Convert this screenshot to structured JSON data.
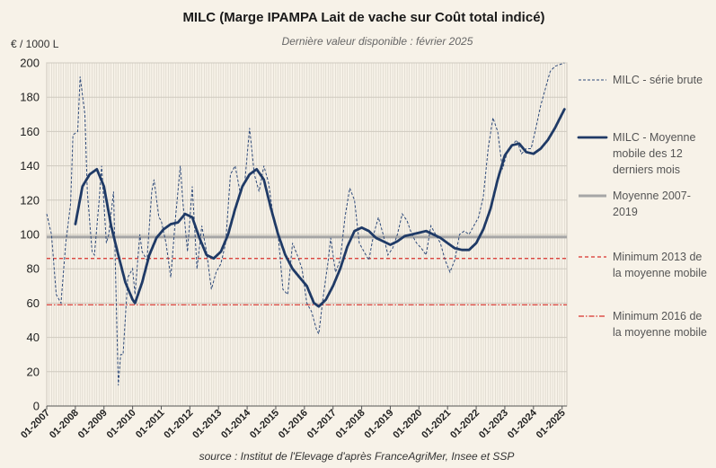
{
  "chart_data": {
    "type": "line",
    "title": "MILC (Marge IPAMPA Lait de vache sur Coût total indicé)",
    "subtitle": "Dernière valeur disponible : février 2025",
    "ylabel": "€ / 1000 L",
    "source": "source : Institut de l'Elevage d'après FranceAgriMer, Insee et SSP",
    "ylim": [
      0,
      200
    ],
    "yticks": [
      "0",
      "20",
      "40",
      "60",
      "80",
      "100",
      "120",
      "140",
      "160",
      "180",
      "200"
    ],
    "xticks": [
      "01-2007",
      "01-2008",
      "01-2009",
      "01-2010",
      "01-2011",
      "01-2012",
      "01-2013",
      "01-2014",
      "01-2015",
      "01-2016",
      "01-2017",
      "01-2018",
      "01-2019",
      "01-2020",
      "01-2021",
      "01-2022",
      "01-2023",
      "01-2024",
      "01-2025"
    ],
    "grid": true,
    "legend_position": "right",
    "colors": {
      "raw": "#2e4a7a",
      "moving_avg": "#1f3a66",
      "mean": "#a6a6a6",
      "min2013": "#d9312b",
      "min2016": "#d9312b"
    },
    "series": [
      {
        "name": "MILC - série brute",
        "style": "dashed-thin",
        "points": [
          [
            "01-2007",
            112
          ],
          [
            "03-2007",
            100
          ],
          [
            "05-2007",
            65
          ],
          [
            "07-2007",
            60
          ],
          [
            "09-2007",
            95
          ],
          [
            "11-2007",
            118
          ],
          [
            "12-2007",
            158
          ],
          [
            "02-2008",
            160
          ],
          [
            "03-2008",
            192
          ],
          [
            "05-2008",
            170
          ],
          [
            "06-2008",
            125
          ],
          [
            "08-2008",
            90
          ],
          [
            "09-2008",
            88
          ],
          [
            "11-2008",
            120
          ],
          [
            "12-2008",
            140
          ],
          [
            "02-2009",
            95
          ],
          [
            "03-2009",
            100
          ],
          [
            "05-2009",
            125
          ],
          [
            "07-2009",
            12
          ],
          [
            "08-2009",
            30
          ],
          [
            "09-2009",
            30
          ],
          [
            "11-2009",
            75
          ],
          [
            "01-2010",
            80
          ],
          [
            "02-2010",
            65
          ],
          [
            "04-2010",
            100
          ],
          [
            "05-2010",
            90
          ],
          [
            "07-2010",
            85
          ],
          [
            "09-2010",
            125
          ],
          [
            "10-2010",
            132
          ],
          [
            "12-2010",
            110
          ],
          [
            "01-2011",
            108
          ],
          [
            "03-2011",
            95
          ],
          [
            "05-2011",
            75
          ],
          [
            "07-2011",
            110
          ],
          [
            "09-2011",
            140
          ],
          [
            "10-2011",
            120
          ],
          [
            "12-2011",
            90
          ],
          [
            "02-2012",
            128
          ],
          [
            "04-2012",
            80
          ],
          [
            "06-2012",
            105
          ],
          [
            "08-2012",
            90
          ],
          [
            "10-2012",
            68
          ],
          [
            "12-2012",
            78
          ],
          [
            "02-2013",
            83
          ],
          [
            "04-2013",
            95
          ],
          [
            "06-2013",
            135
          ],
          [
            "08-2013",
            140
          ],
          [
            "10-2013",
            125
          ],
          [
            "12-2013",
            130
          ],
          [
            "02-2014",
            162
          ],
          [
            "04-2014",
            135
          ],
          [
            "06-2014",
            125
          ],
          [
            "08-2014",
            140
          ],
          [
            "10-2014",
            130
          ],
          [
            "12-2014",
            110
          ],
          [
            "02-2015",
            100
          ],
          [
            "04-2015",
            68
          ],
          [
            "06-2015",
            65
          ],
          [
            "08-2015",
            95
          ],
          [
            "10-2015",
            88
          ],
          [
            "12-2015",
            80
          ],
          [
            "02-2016",
            60
          ],
          [
            "04-2016",
            55
          ],
          [
            "06-2016",
            45
          ],
          [
            "07-2016",
            42
          ],
          [
            "09-2016",
            65
          ],
          [
            "11-2016",
            85
          ],
          [
            "12-2016",
            98
          ],
          [
            "02-2017",
            78
          ],
          [
            "04-2017",
            85
          ],
          [
            "06-2017",
            110
          ],
          [
            "08-2017",
            127
          ],
          [
            "10-2017",
            120
          ],
          [
            "12-2017",
            95
          ],
          [
            "02-2018",
            90
          ],
          [
            "04-2018",
            85
          ],
          [
            "06-2018",
            100
          ],
          [
            "08-2018",
            110
          ],
          [
            "10-2018",
            100
          ],
          [
            "12-2018",
            88
          ],
          [
            "02-2019",
            92
          ],
          [
            "04-2019",
            100
          ],
          [
            "06-2019",
            112
          ],
          [
            "08-2019",
            108
          ],
          [
            "10-2019",
            100
          ],
          [
            "12-2019",
            95
          ],
          [
            "02-2020",
            92
          ],
          [
            "04-2020",
            88
          ],
          [
            "06-2020",
            105
          ],
          [
            "08-2020",
            100
          ],
          [
            "10-2020",
            95
          ],
          [
            "12-2020",
            85
          ],
          [
            "02-2021",
            78
          ],
          [
            "04-2021",
            85
          ],
          [
            "06-2021",
            100
          ],
          [
            "08-2021",
            102
          ],
          [
            "10-2021",
            100
          ],
          [
            "12-2021",
            105
          ],
          [
            "02-2022",
            110
          ],
          [
            "04-2022",
            122
          ],
          [
            "06-2022",
            150
          ],
          [
            "08-2022",
            168
          ],
          [
            "10-2022",
            160
          ],
          [
            "12-2022",
            138
          ],
          [
            "02-2023",
            148
          ],
          [
            "04-2023",
            152
          ],
          [
            "06-2023",
            155
          ],
          [
            "08-2023",
            147
          ],
          [
            "10-2023",
            150
          ],
          [
            "12-2023",
            150
          ],
          [
            "02-2024",
            162
          ],
          [
            "04-2024",
            175
          ],
          [
            "06-2024",
            185
          ],
          [
            "08-2024",
            195
          ],
          [
            "10-2024",
            198
          ],
          [
            "02-2025",
            200
          ]
        ]
      },
      {
        "name": "MILC - Moyenne mobile des 12 derniers mois",
        "style": "solid-thick",
        "points": [
          [
            "01-2008",
            106
          ],
          [
            "04-2008",
            128
          ],
          [
            "07-2008",
            135
          ],
          [
            "10-2008",
            138
          ],
          [
            "01-2009",
            128
          ],
          [
            "04-2009",
            105
          ],
          [
            "07-2009",
            88
          ],
          [
            "10-2009",
            72
          ],
          [
            "01-2010",
            62
          ],
          [
            "02-2010",
            60
          ],
          [
            "05-2010",
            72
          ],
          [
            "08-2010",
            88
          ],
          [
            "11-2010",
            98
          ],
          [
            "02-2011",
            103
          ],
          [
            "05-2011",
            106
          ],
          [
            "08-2011",
            107
          ],
          [
            "11-2011",
            112
          ],
          [
            "02-2012",
            110
          ],
          [
            "05-2012",
            98
          ],
          [
            "08-2012",
            88
          ],
          [
            "11-2012",
            86
          ],
          [
            "02-2013",
            90
          ],
          [
            "05-2013",
            100
          ],
          [
            "08-2013",
            115
          ],
          [
            "11-2013",
            128
          ],
          [
            "02-2014",
            135
          ],
          [
            "05-2014",
            138
          ],
          [
            "08-2014",
            132
          ],
          [
            "11-2014",
            115
          ],
          [
            "02-2015",
            100
          ],
          [
            "05-2015",
            88
          ],
          [
            "08-2015",
            80
          ],
          [
            "11-2015",
            75
          ],
          [
            "02-2016",
            70
          ],
          [
            "05-2016",
            60
          ],
          [
            "07-2016",
            58
          ],
          [
            "10-2016",
            62
          ],
          [
            "01-2017",
            70
          ],
          [
            "04-2017",
            80
          ],
          [
            "07-2017",
            93
          ],
          [
            "10-2017",
            102
          ],
          [
            "01-2018",
            104
          ],
          [
            "04-2018",
            102
          ],
          [
            "07-2018",
            98
          ],
          [
            "10-2018",
            96
          ],
          [
            "01-2019",
            94
          ],
          [
            "04-2019",
            96
          ],
          [
            "07-2019",
            99
          ],
          [
            "10-2019",
            100
          ],
          [
            "01-2020",
            101
          ],
          [
            "04-2020",
            102
          ],
          [
            "07-2020",
            100
          ],
          [
            "10-2020",
            98
          ],
          [
            "01-2021",
            95
          ],
          [
            "04-2021",
            92
          ],
          [
            "07-2021",
            91
          ],
          [
            "10-2021",
            91
          ],
          [
            "01-2022",
            95
          ],
          [
            "04-2022",
            103
          ],
          [
            "07-2022",
            115
          ],
          [
            "10-2022",
            132
          ],
          [
            "01-2023",
            146
          ],
          [
            "04-2023",
            152
          ],
          [
            "07-2023",
            153
          ],
          [
            "10-2023",
            148
          ],
          [
            "01-2024",
            147
          ],
          [
            "04-2024",
            150
          ],
          [
            "07-2024",
            155
          ],
          [
            "10-2024",
            162
          ],
          [
            "02-2025",
            173
          ]
        ]
      },
      {
        "name": "Moyenne 2007-2019",
        "style": "solid-grey",
        "value": 98.5
      },
      {
        "name": "Minimum 2013 de la moyenne mobile",
        "style": "dashed-red",
        "value": 86
      },
      {
        "name": "Minimum 2016 de la moyenne mobile",
        "style": "dashdot-red",
        "value": 59
      }
    ],
    "legend": [
      {
        "key": "raw",
        "lines": [
          "MILC - série brute"
        ]
      },
      {
        "key": "ma",
        "lines": [
          "MILC - Moyenne",
          "mobile des 12",
          "derniers mois"
        ]
      },
      {
        "key": "mean",
        "lines": [
          "Moyenne 2007-",
          "2019"
        ]
      },
      {
        "key": "min2013",
        "lines": [
          "Minimum 2013  de",
          "la moyenne mobile"
        ]
      },
      {
        "key": "min2016",
        "lines": [
          "Minimum 2016 de",
          "la moyenne mobile"
        ]
      }
    ]
  }
}
